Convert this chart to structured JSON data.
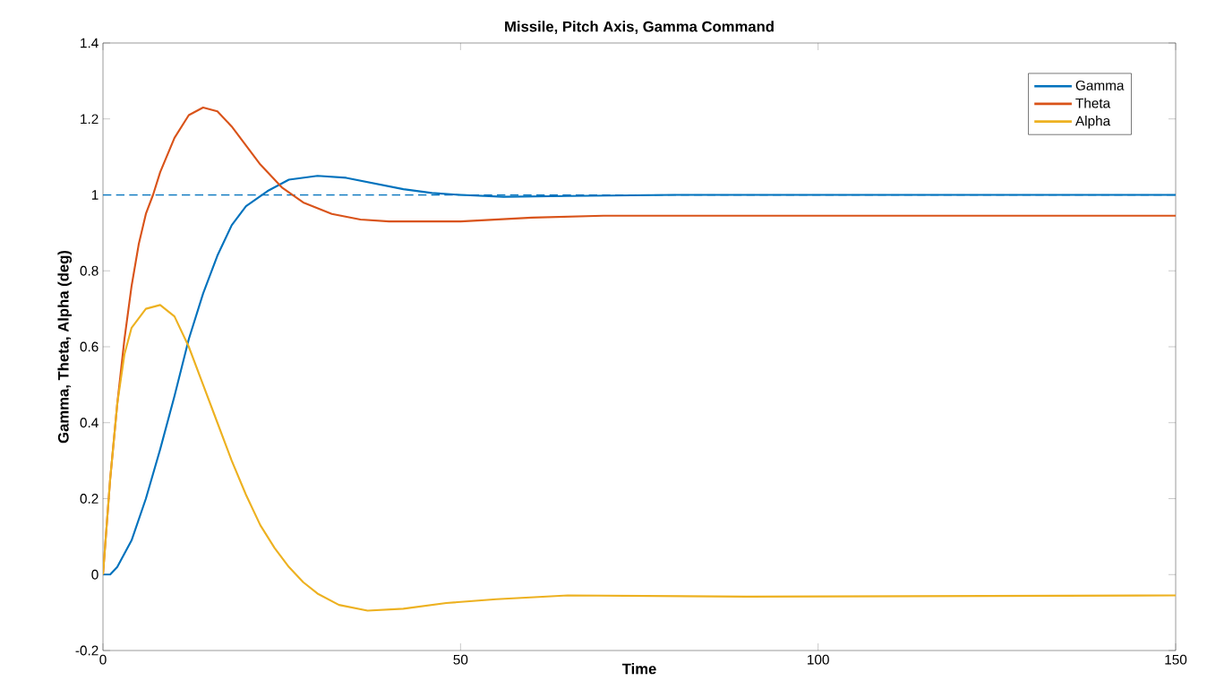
{
  "chart_data": {
    "type": "line",
    "title": "Missile, Pitch Axis, Gamma Command",
    "xlabel": "Time",
    "ylabel": "Gamma, Theta, Alpha (deg)",
    "xlim": [
      0,
      150
    ],
    "ylim": [
      -0.2,
      1.4
    ],
    "xticks": [
      0,
      50,
      100,
      150
    ],
    "yticks": [
      -0.2,
      0,
      0.2,
      0.4,
      0.6,
      0.8,
      1,
      1.2,
      1.4
    ],
    "legend": "top right",
    "line_style": "solid",
    "marker": "none",
    "ref_lines": [
      {
        "axis": "y",
        "value": 1,
        "color": "#0072bd",
        "line_style": "dashed"
      }
    ],
    "series": [
      {
        "name": "Gamma",
        "color": "#0072bd",
        "x": [
          0,
          1,
          2,
          4,
          6,
          8,
          10,
          12,
          14,
          16,
          18,
          20,
          23,
          26,
          30,
          34,
          38,
          42,
          46,
          50,
          56,
          65,
          80,
          150
        ],
        "values": [
          0,
          0,
          0.02,
          0.09,
          0.2,
          0.33,
          0.47,
          0.62,
          0.74,
          0.84,
          0.92,
          0.97,
          1.01,
          1.04,
          1.05,
          1.045,
          1.03,
          1.015,
          1.005,
          1.0,
          0.995,
          0.997,
          1.0,
          1.0
        ]
      },
      {
        "name": "Theta",
        "color": "#d95319",
        "x": [
          0,
          1,
          2,
          3,
          4,
          5,
          6,
          7,
          8,
          10,
          12,
          14,
          16,
          18,
          20,
          22,
          25,
          28,
          32,
          36,
          40,
          50,
          60,
          70,
          150
        ],
        "values": [
          0,
          0.25,
          0.45,
          0.62,
          0.76,
          0.87,
          0.95,
          1.0,
          1.06,
          1.15,
          1.21,
          1.23,
          1.22,
          1.18,
          1.13,
          1.08,
          1.02,
          0.98,
          0.95,
          0.935,
          0.93,
          0.93,
          0.94,
          0.945,
          0.945
        ]
      },
      {
        "name": "Alpha",
        "color": "#edb120",
        "x": [
          0,
          1,
          2,
          3,
          4,
          6,
          8,
          10,
          12,
          14,
          16,
          18,
          20,
          22,
          24,
          26,
          28,
          30,
          33,
          37,
          42,
          48,
          55,
          65,
          90,
          150
        ],
        "values": [
          0,
          0.25,
          0.45,
          0.58,
          0.65,
          0.7,
          0.71,
          0.68,
          0.6,
          0.5,
          0.4,
          0.3,
          0.21,
          0.13,
          0.07,
          0.02,
          -0.02,
          -0.05,
          -0.08,
          -0.095,
          -0.09,
          -0.075,
          -0.065,
          -0.055,
          -0.058,
          -0.055
        ]
      }
    ]
  }
}
